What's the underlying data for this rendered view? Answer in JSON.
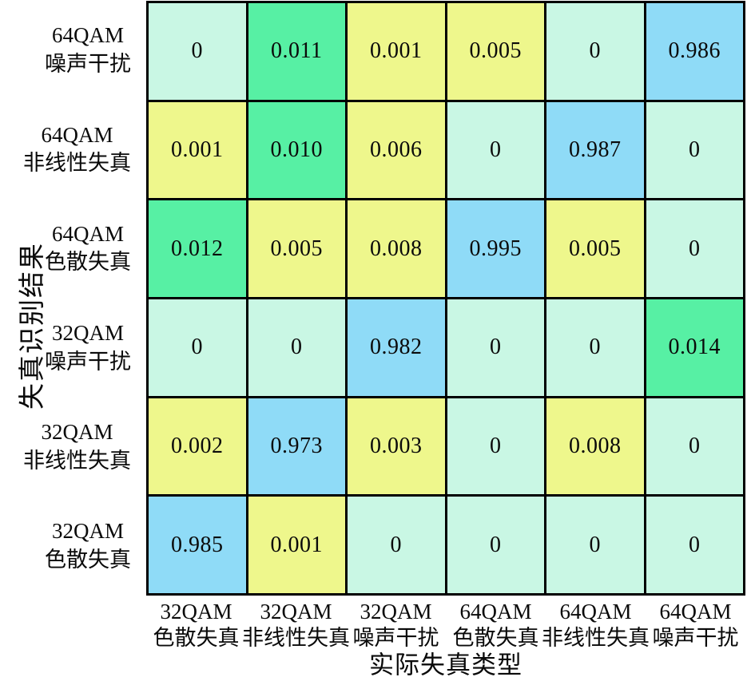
{
  "chart_data": {
    "type": "heatmap",
    "title": "",
    "xlabel": "实际失真类型",
    "ylabel": "失真识别结果",
    "legend": "none",
    "grid_line_color": "#000000",
    "background": "#ffffff",
    "columns": [
      {
        "line1": "32QAM",
        "line2": "色散失真"
      },
      {
        "line1": "32QAM",
        "line2": "非线性失真"
      },
      {
        "line1": "32QAM",
        "line2": "噪声干扰"
      },
      {
        "line1": "64QAM",
        "line2": "色散失真"
      },
      {
        "line1": "64QAM",
        "line2": "非线性失真"
      },
      {
        "line1": "64QAM",
        "line2": "噪声干扰"
      }
    ],
    "rows": [
      {
        "line1": "64QAM",
        "line2": "噪声干扰"
      },
      {
        "line1": "64QAM",
        "line2": "非线性失真"
      },
      {
        "line1": "64QAM",
        "line2": "色散失真"
      },
      {
        "line1": "32QAM",
        "line2": "噪声干扰"
      },
      {
        "line1": "32QAM",
        "line2": "非线性失真"
      },
      {
        "line1": "32QAM",
        "line2": "色散失真"
      }
    ],
    "values": [
      [
        0,
        0.011,
        0.001,
        0.005,
        0,
        0.986
      ],
      [
        0.001,
        0.01,
        0.006,
        0,
        0.987,
        0
      ],
      [
        0.012,
        0.005,
        0.008,
        0.995,
        0.005,
        0
      ],
      [
        0,
        0,
        0.982,
        0,
        0,
        0.014
      ],
      [
        0.002,
        0.973,
        0.003,
        0,
        0.008,
        0
      ],
      [
        0.985,
        0.001,
        0,
        0,
        0,
        0
      ]
    ],
    "display": [
      [
        "0",
        "0.011",
        "0.001",
        "0.005",
        "0",
        "0.986"
      ],
      [
        "0.001",
        "0.010",
        "0.006",
        "0",
        "0.987",
        "0"
      ],
      [
        "0.012",
        "0.005",
        "0.008",
        "0.995",
        "0.005",
        "0"
      ],
      [
        "0",
        "0",
        "0.982",
        "0",
        "0",
        "0.014"
      ],
      [
        "0.002",
        "0.973",
        "0.003",
        "0",
        "0.008",
        "0"
      ],
      [
        "0.985",
        "0.001",
        "0",
        "0",
        "0",
        "0"
      ]
    ],
    "cell_colors": [
      [
        "mint",
        "green",
        "yellow",
        "yellow",
        "mint",
        "blue"
      ],
      [
        "yellow",
        "green",
        "yellow",
        "mint",
        "blue",
        "mint"
      ],
      [
        "green",
        "yellow",
        "yellow",
        "blue",
        "yellow",
        "mint"
      ],
      [
        "mint",
        "mint",
        "blue",
        "mint",
        "mint",
        "green"
      ],
      [
        "yellow",
        "blue",
        "yellow",
        "mint",
        "yellow",
        "mint"
      ],
      [
        "blue",
        "yellow",
        "mint",
        "mint",
        "mint",
        "mint"
      ]
    ],
    "palette": {
      "mint": "#c9f7e4",
      "green": "#57f0a4",
      "yellow": "#eef78c",
      "blue": "#8fdbf7"
    },
    "value_text_color": "#0a0a0a"
  }
}
